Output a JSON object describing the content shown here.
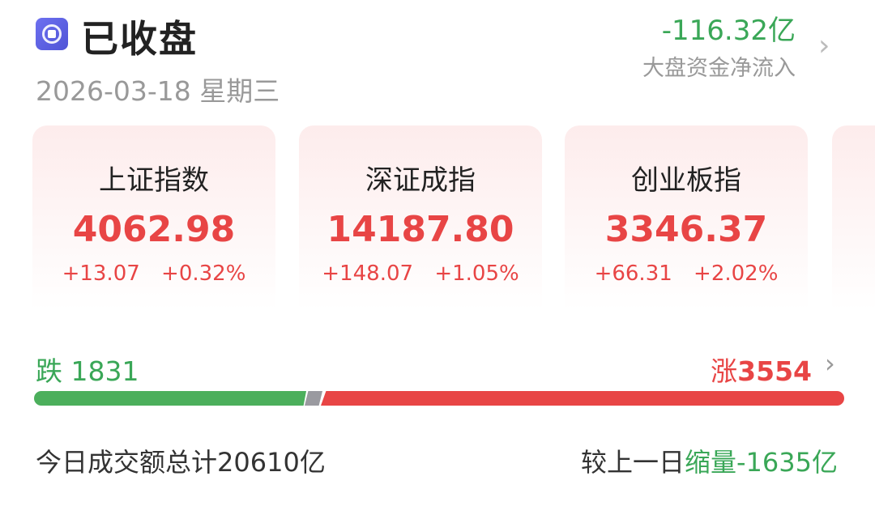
{
  "header": {
    "status": "已收盘",
    "date": "2026-03-18",
    "weekday": "星期三",
    "net_flow": "-116.32亿",
    "net_flow_label": "大盘资金净流入"
  },
  "indices": [
    {
      "name": "上证指数",
      "value": "4062.98",
      "change": "+13.07",
      "pct": "+0.32%"
    },
    {
      "name": "深证成指",
      "value": "14187.80",
      "change": "+148.07",
      "pct": "+1.05%"
    },
    {
      "name": "创业板指",
      "value": "3346.37",
      "change": "+66.31",
      "pct": "+2.02%"
    }
  ],
  "breadth": {
    "down_label": "跌",
    "down": "1831",
    "up_label": "涨",
    "up": "3554",
    "flat": 0
  },
  "volume": {
    "label": "今日成交额总计",
    "value": "20610亿",
    "compare_label": "较上一日",
    "compare_kind": "缩量",
    "compare_value": "-1635亿"
  },
  "colors": {
    "up": "#e84545",
    "down": "#3aa757",
    "accent": "#5a5ee0"
  }
}
